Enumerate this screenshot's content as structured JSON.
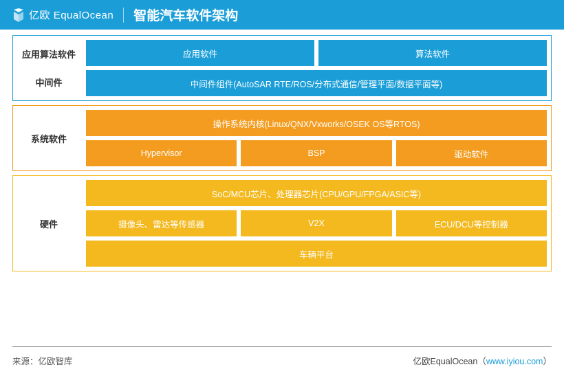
{
  "colors": {
    "header_bg": "#1b9ed8",
    "section1_border": "#1b9ed8",
    "section1_cell": "#1b9ed8",
    "section2_border": "#f39c1f",
    "section2_cell": "#f39c1f",
    "section3_border": "#f3b91f",
    "section3_cell": "#f3b91f",
    "label_text": "#333333"
  },
  "header": {
    "brand_cn": "亿欧",
    "brand_en": "EqualOcean",
    "title": "智能汽车软件架构"
  },
  "sections": [
    {
      "labels": [
        "应用算法软件",
        "中间件"
      ],
      "color_key": "section1",
      "rows": [
        [
          {
            "text": "应用软件"
          },
          {
            "text": "算法软件"
          }
        ],
        [
          {
            "text": "中间件组件(AutoSAR RTE/ROS/分布式通信/管理平面/数据平面等)"
          }
        ]
      ]
    },
    {
      "labels": [
        "系统软件"
      ],
      "color_key": "section2",
      "rows": [
        [
          {
            "text": "操作系统内核(Linux/QNX/Vxworks/OSEK OS等RTOS)"
          }
        ],
        [
          {
            "text": "Hypervisor"
          },
          {
            "text": "BSP"
          },
          {
            "text": "驱动软件"
          }
        ]
      ]
    },
    {
      "labels": [
        "硬件"
      ],
      "color_key": "section3",
      "rows": [
        [
          {
            "text": "SoC/MCU芯片、处理器芯片(CPU/GPU/FPGA/ASIC等)"
          }
        ],
        [
          {
            "text": "摄像头、雷达等传感器"
          },
          {
            "text": "V2X"
          },
          {
            "text": "ECU/DCU等控制器"
          }
        ],
        [
          {
            "text": "车辆平台"
          }
        ]
      ]
    }
  ],
  "footer": {
    "source_label": "来源：亿欧智库",
    "attribution_prefix": "亿欧EqualOcean（",
    "attribution_link": "www.iyiou.com",
    "attribution_suffix": "）"
  }
}
